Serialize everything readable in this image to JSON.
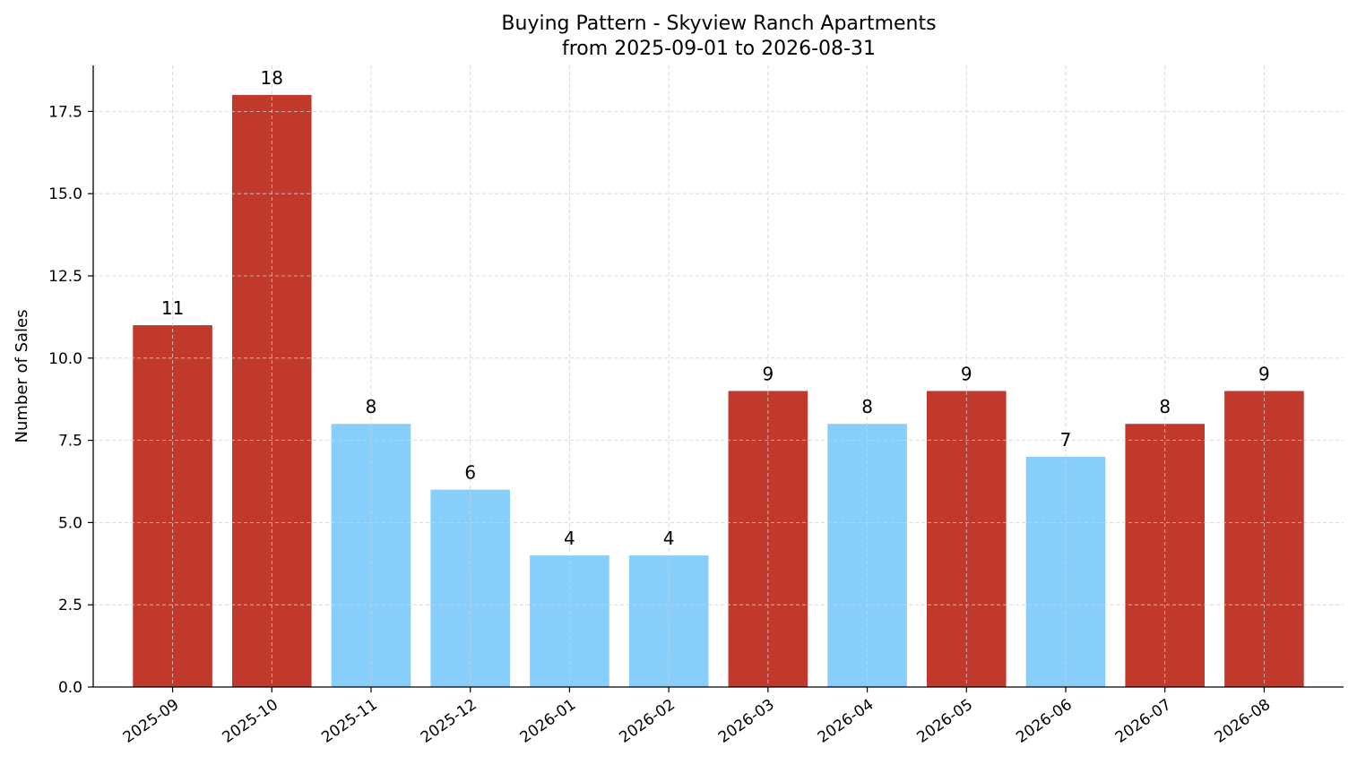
{
  "chart_data": {
    "type": "bar",
    "title": "Buying Pattern - Skyview Ranch Apartments",
    "subtitle": "from 2025-09-01 to 2026-08-31",
    "xlabel": "",
    "ylabel": "Number of Sales",
    "ylim": [
      0,
      18.9
    ],
    "yticks": [
      "0.0",
      "2.5",
      "5.0",
      "7.5",
      "10.0",
      "12.5",
      "15.0",
      "17.5"
    ],
    "grid": true,
    "colors": {
      "high": "#c0392b",
      "low": "#87cefa"
    },
    "categories": [
      "2025-09",
      "2025-10",
      "2025-11",
      "2025-12",
      "2026-01",
      "2026-02",
      "2026-03",
      "2026-04",
      "2026-05",
      "2026-06",
      "2026-07",
      "2026-08"
    ],
    "values": [
      11,
      18,
      8,
      6,
      4,
      4,
      9,
      8,
      9,
      7,
      8,
      9
    ],
    "bar_colors": [
      "high",
      "high",
      "low",
      "low",
      "low",
      "low",
      "high",
      "low",
      "high",
      "low",
      "high",
      "high"
    ]
  }
}
